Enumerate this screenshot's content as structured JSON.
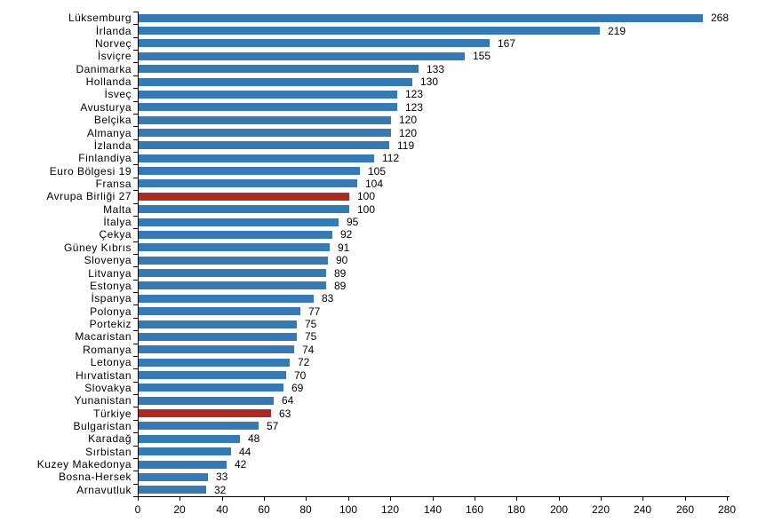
{
  "chart_data": {
    "type": "bar",
    "orientation": "horizontal",
    "title": "",
    "xlabel": "",
    "ylabel": "",
    "xlim": [
      0,
      280
    ],
    "xticks": [
      0,
      20,
      40,
      60,
      80,
      100,
      120,
      140,
      160,
      180,
      200,
      220,
      240,
      260,
      280
    ],
    "grid": false,
    "value_labels_shown": true,
    "categories": [
      "Lüksemburg",
      "İrlanda",
      "Norveç",
      "İsviçre",
      "Danimarka",
      "Hollanda",
      "İsveç",
      "Avusturya",
      "Belçika",
      "Almanya",
      "İzlanda",
      "Finlandiya",
      "Euro Bölgesi 19",
      "Fransa",
      "Avrupa Birliği 27",
      "Malta",
      "İtalya",
      "Çekya",
      "Güney Kıbrıs",
      "Slovenya",
      "Litvanya",
      "Estonya",
      "İspanya",
      "Polonya",
      "Portekiz",
      "Macaristan",
      "Romanya",
      "Letonya",
      "Hırvatistan",
      "Slovakya",
      "Yunanistan",
      "Türkiye",
      "Bulgaristan",
      "Karadağ",
      "Sırbistan",
      "Kuzey Makedonya",
      "Bosna-Hersek",
      "Arnavutluk"
    ],
    "values": [
      268,
      219,
      167,
      155,
      133,
      130,
      123,
      123,
      120,
      120,
      119,
      112,
      105,
      104,
      100,
      100,
      95,
      92,
      91,
      90,
      89,
      89,
      83,
      77,
      75,
      75,
      74,
      72,
      70,
      69,
      64,
      63,
      57,
      48,
      44,
      42,
      33,
      32
    ],
    "highlighted_categories": [
      "Avrupa Birliği 27",
      "Türkiye"
    ],
    "colors": {
      "bar": "#3779B3",
      "highlight_bar": "#AE2A21",
      "axis": "#000000",
      "text": "#000000",
      "background": "#ffffff"
    }
  }
}
